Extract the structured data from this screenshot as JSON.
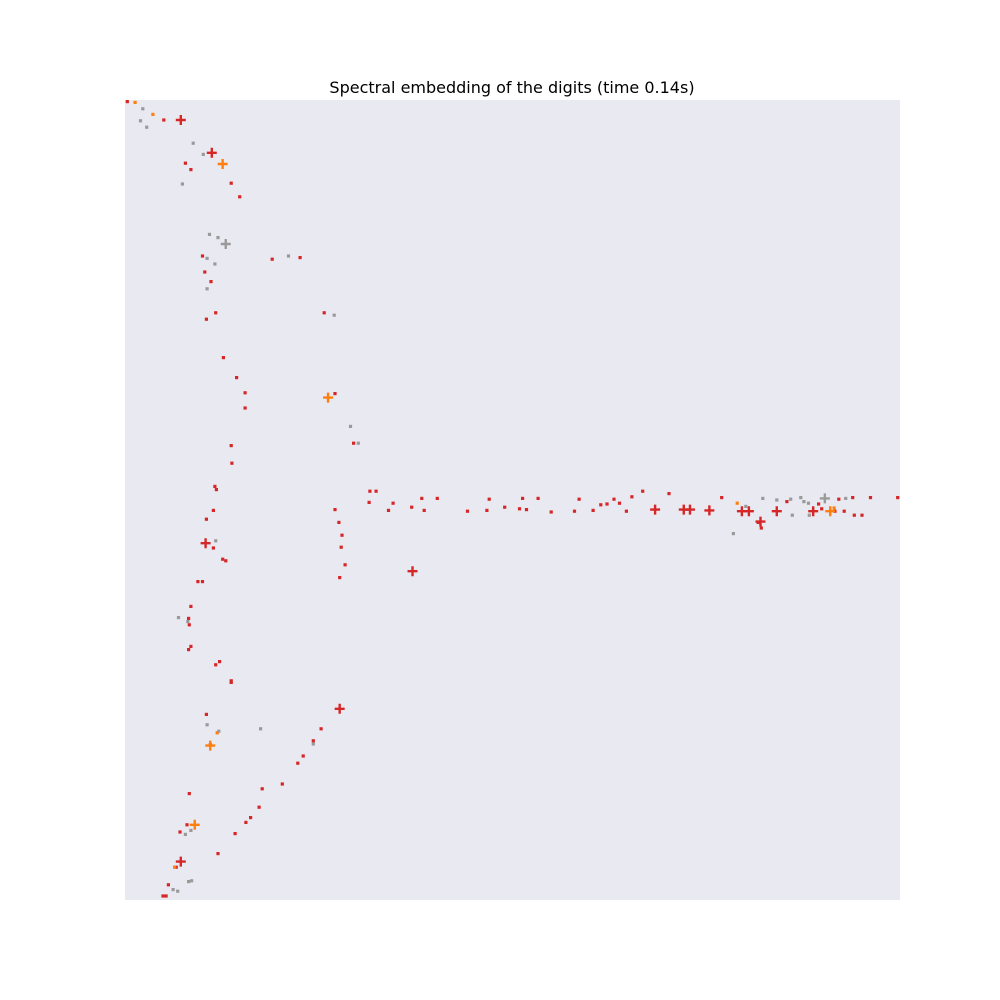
{
  "chart_data": {
    "type": "scatter",
    "title": "Spectral embedding of the digits (time 0.14s)",
    "xlabel": "",
    "ylabel": "",
    "xlim": [
      0,
      1
    ],
    "ylim": [
      0,
      1
    ],
    "grid": false,
    "axes_visible": false,
    "background_color": "#e9e9f1",
    "colors": {
      "red": "#d62728",
      "orange": "#ff7f0e",
      "gray": "#9a9a9a"
    },
    "series": [
      {
        "color": "red",
        "marker": "square",
        "points": [
          [
            0.003,
            0.998
          ],
          [
            0.05,
            0.975
          ],
          [
            0.078,
            0.921
          ],
          [
            0.085,
            0.913
          ],
          [
            0.137,
            0.896
          ],
          [
            0.148,
            0.879
          ],
          [
            0.19,
            0.801
          ],
          [
            0.226,
            0.803
          ],
          [
            0.1,
            0.805
          ],
          [
            0.103,
            0.785
          ],
          [
            0.111,
            0.773
          ],
          [
            0.105,
            0.726
          ],
          [
            0.117,
            0.734
          ],
          [
            0.127,
            0.678
          ],
          [
            0.144,
            0.653
          ],
          [
            0.155,
            0.634
          ],
          [
            0.155,
            0.615
          ],
          [
            0.257,
            0.734
          ],
          [
            0.271,
            0.633
          ],
          [
            0.295,
            0.571
          ],
          [
            0.271,
            0.488
          ],
          [
            0.276,
            0.472
          ],
          [
            0.28,
            0.456
          ],
          [
            0.279,
            0.441
          ],
          [
            0.284,
            0.419
          ],
          [
            0.277,
            0.403
          ],
          [
            0.137,
            0.568
          ],
          [
            0.138,
            0.546
          ],
          [
            0.118,
            0.513
          ],
          [
            0.116,
            0.517
          ],
          [
            0.114,
            0.487
          ],
          [
            0.105,
            0.476
          ],
          [
            0.114,
            0.44
          ],
          [
            0.13,
            0.424
          ],
          [
            0.126,
            0.426
          ],
          [
            0.1,
            0.398
          ],
          [
            0.094,
            0.398
          ],
          [
            0.085,
            0.367
          ],
          [
            0.082,
            0.352
          ],
          [
            0.083,
            0.344
          ],
          [
            0.085,
            0.317
          ],
          [
            0.082,
            0.313
          ],
          [
            0.117,
            0.294
          ],
          [
            0.137,
            0.274
          ],
          [
            0.137,
            0.272
          ],
          [
            0.105,
            0.232
          ],
          [
            0.11,
            0.194
          ],
          [
            0.083,
            0.133
          ],
          [
            0.08,
            0.094
          ],
          [
            0.071,
            0.085
          ],
          [
            0.066,
            0.041
          ],
          [
            0.056,
            0.019
          ],
          [
            0.049,
            0.005
          ],
          [
            0.053,
            0.005
          ],
          [
            0.12,
            0.058
          ],
          [
            0.142,
            0.083
          ],
          [
            0.156,
            0.097
          ],
          [
            0.162,
            0.103
          ],
          [
            0.173,
            0.116
          ],
          [
            0.177,
            0.139
          ],
          [
            0.203,
            0.145
          ],
          [
            0.223,
            0.171
          ],
          [
            0.23,
            0.18
          ],
          [
            0.243,
            0.199
          ],
          [
            0.253,
            0.214
          ],
          [
            0.122,
            0.298
          ],
          [
            0.316,
            0.511
          ],
          [
            0.324,
            0.511
          ],
          [
            0.315,
            0.497
          ],
          [
            0.34,
            0.487
          ],
          [
            0.346,
            0.496
          ],
          [
            0.37,
            0.491
          ],
          [
            0.386,
            0.487
          ],
          [
            0.383,
            0.502
          ],
          [
            0.403,
            0.502
          ],
          [
            0.442,
            0.486
          ],
          [
            0.467,
            0.487
          ],
          [
            0.47,
            0.501
          ],
          [
            0.49,
            0.491
          ],
          [
            0.509,
            0.489
          ],
          [
            0.518,
            0.488
          ],
          [
            0.513,
            0.502
          ],
          [
            0.533,
            0.502
          ],
          [
            0.55,
            0.485
          ],
          [
            0.58,
            0.486
          ],
          [
            0.586,
            0.501
          ],
          [
            0.604,
            0.487
          ],
          [
            0.614,
            0.494
          ],
          [
            0.622,
            0.495
          ],
          [
            0.631,
            0.501
          ],
          [
            0.638,
            0.496
          ],
          [
            0.647,
            0.486
          ],
          [
            0.654,
            0.504
          ],
          [
            0.668,
            0.511
          ],
          [
            0.702,
            0.508
          ],
          [
            0.77,
            0.503
          ],
          [
            0.854,
            0.498
          ],
          [
            0.921,
            0.501
          ],
          [
            0.939,
            0.503
          ],
          [
            0.962,
            0.503
          ],
          [
            0.997,
            0.503
          ],
          [
            0.895,
            0.495
          ],
          [
            0.899,
            0.489
          ],
          [
            0.916,
            0.486
          ],
          [
            0.941,
            0.481
          ],
          [
            0.951,
            0.481
          ],
          [
            0.928,
            0.486
          ],
          [
            0.817,
            0.472
          ],
          [
            0.821,
            0.465
          ]
        ]
      },
      {
        "color": "red",
        "marker": "plus",
        "points": [
          [
            0.072,
            0.975
          ],
          [
            0.112,
            0.934
          ],
          [
            0.104,
            0.446
          ],
          [
            0.371,
            0.411
          ],
          [
            0.277,
            0.239
          ],
          [
            0.072,
            0.048
          ],
          [
            0.684,
            0.488
          ],
          [
            0.721,
            0.488
          ],
          [
            0.729,
            0.488
          ],
          [
            0.754,
            0.487
          ],
          [
            0.796,
            0.486
          ],
          [
            0.805,
            0.486
          ],
          [
            0.841,
            0.486
          ],
          [
            0.82,
            0.473
          ],
          [
            0.888,
            0.486
          ]
        ]
      },
      {
        "color": "orange",
        "marker": "square",
        "points": [
          [
            0.013,
            0.997
          ],
          [
            0.036,
            0.982
          ],
          [
            0.119,
            0.209
          ],
          [
            0.064,
            0.041
          ],
          [
            0.79,
            0.496
          ],
          [
            0.915,
            0.49
          ]
        ]
      },
      {
        "color": "orange",
        "marker": "plus",
        "points": [
          [
            0.126,
            0.92
          ],
          [
            0.262,
            0.628
          ],
          [
            0.11,
            0.193
          ],
          [
            0.09,
            0.094
          ],
          [
            0.91,
            0.486
          ]
        ]
      },
      {
        "color": "gray",
        "marker": "square",
        "points": [
          [
            0.023,
            0.989
          ],
          [
            0.02,
            0.974
          ],
          [
            0.028,
            0.966
          ],
          [
            0.088,
            0.946
          ],
          [
            0.101,
            0.932
          ],
          [
            0.074,
            0.895
          ],
          [
            0.109,
            0.832
          ],
          [
            0.12,
            0.828
          ],
          [
            0.106,
            0.802
          ],
          [
            0.116,
            0.795
          ],
          [
            0.106,
            0.764
          ],
          [
            0.211,
            0.805
          ],
          [
            0.27,
            0.731
          ],
          [
            0.291,
            0.592
          ],
          [
            0.301,
            0.571
          ],
          [
            0.117,
            0.449
          ],
          [
            0.069,
            0.353
          ],
          [
            0.081,
            0.348
          ],
          [
            0.106,
            0.219
          ],
          [
            0.121,
            0.211
          ],
          [
            0.175,
            0.214
          ],
          [
            0.243,
            0.195
          ],
          [
            0.085,
            0.087
          ],
          [
            0.078,
            0.082
          ],
          [
            0.082,
            0.023
          ],
          [
            0.062,
            0.013
          ],
          [
            0.086,
            0.024
          ],
          [
            0.068,
            0.011
          ],
          [
            0.785,
            0.458
          ],
          [
            0.801,
            0.492
          ],
          [
            0.823,
            0.502
          ],
          [
            0.841,
            0.5
          ],
          [
            0.859,
            0.501
          ],
          [
            0.872,
            0.503
          ],
          [
            0.876,
            0.498
          ],
          [
            0.882,
            0.496
          ],
          [
            0.93,
            0.502
          ],
          [
            0.883,
            0.481
          ],
          [
            0.861,
            0.481
          ]
        ]
      },
      {
        "color": "gray",
        "marker": "plus",
        "points": [
          [
            0.13,
            0.82
          ],
          [
            0.903,
            0.502
          ]
        ]
      }
    ]
  }
}
